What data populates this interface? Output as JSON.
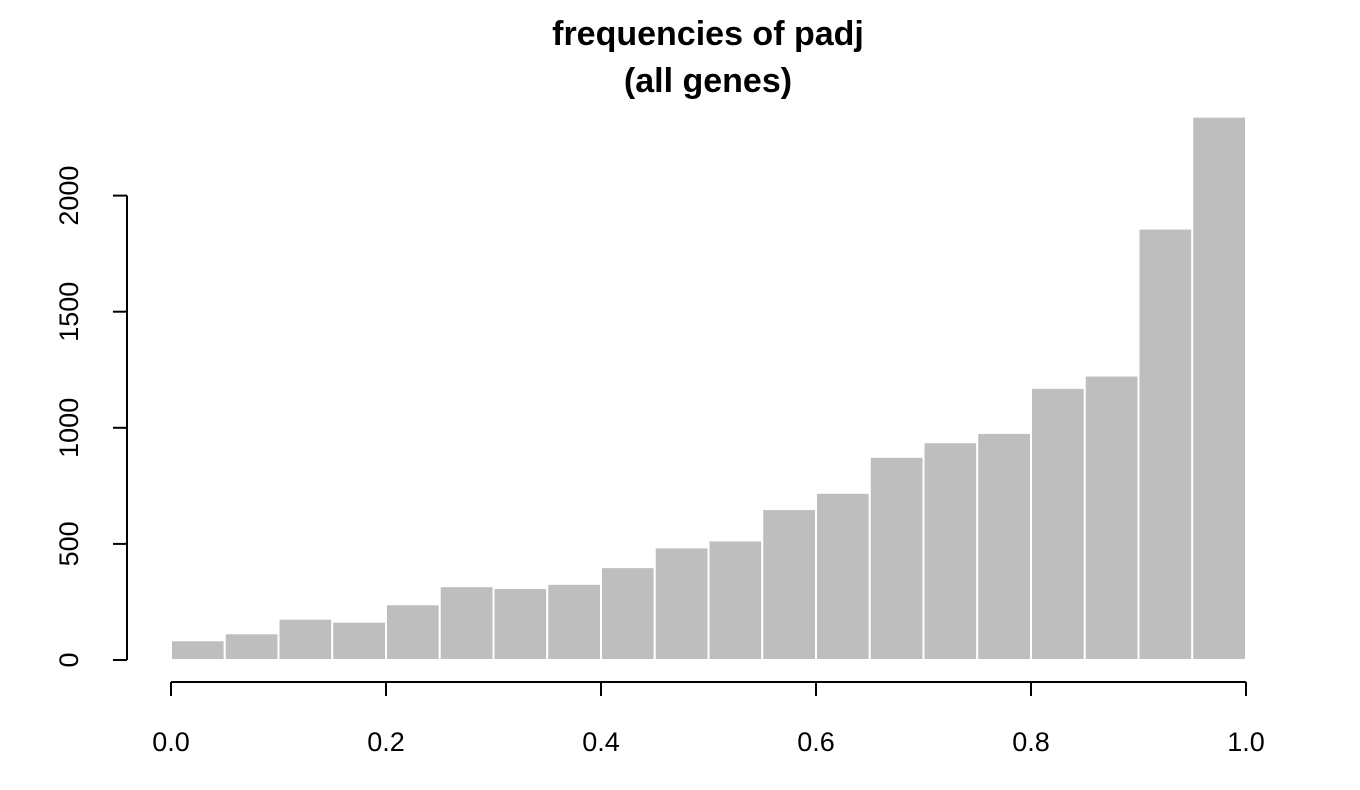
{
  "chart_data": {
    "type": "bar",
    "title_line1": "frequencies of padj",
    "title_line2": "(all genes)",
    "xlabel": "",
    "ylabel": "",
    "bin_edges": [
      0.0,
      0.05,
      0.1,
      0.15,
      0.2,
      0.25,
      0.3,
      0.35,
      0.4,
      0.45,
      0.5,
      0.55,
      0.6,
      0.65,
      0.7,
      0.75,
      0.8,
      0.85,
      0.9,
      0.95,
      1.0
    ],
    "values": [
      85,
      115,
      178,
      165,
      240,
      318,
      310,
      328,
      400,
      485,
      515,
      650,
      720,
      875,
      938,
      978,
      1172,
      1225,
      1858,
      2340
    ],
    "xlim": [
      0,
      1
    ],
    "ylim": [
      0,
      2340
    ],
    "x_ticks": [
      0.0,
      0.2,
      0.4,
      0.6,
      0.8,
      1.0
    ],
    "x_tick_labels": [
      "0.0",
      "0.2",
      "0.4",
      "0.6",
      "0.8",
      "1.0"
    ],
    "y_ticks": [
      0,
      500,
      1000,
      1500,
      2000
    ],
    "y_tick_labels": [
      "0",
      "500",
      "1000",
      "1500",
      "2000"
    ],
    "bar_color": "#bebebe",
    "bar_border_color": "#ffffff",
    "grid": false,
    "legend": "none"
  }
}
